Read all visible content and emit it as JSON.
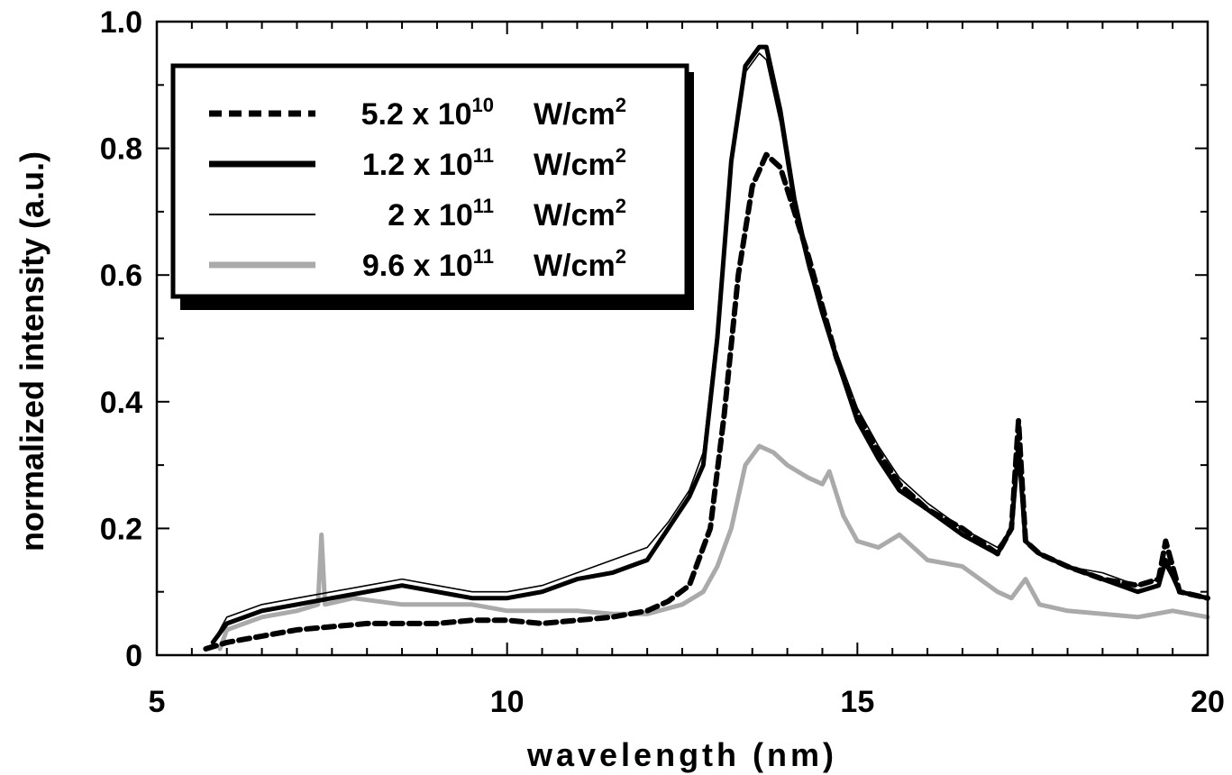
{
  "chart_data": {
    "type": "line",
    "xlabel": "wavelength (nm)",
    "ylabel": "normalized intensity (a.u.)",
    "xlim": [
      5,
      20
    ],
    "ylim": [
      0,
      1.0
    ],
    "x_ticks": [
      5,
      10,
      15,
      20
    ],
    "x_tick_labels": [
      "5",
      "10",
      "15",
      "20"
    ],
    "y_ticks": [
      0,
      0.2,
      0.4,
      0.6,
      0.8,
      1.0
    ],
    "y_tick_labels": [
      "0",
      "0.2",
      "0.4",
      "0.6",
      "0.8",
      "1.0"
    ],
    "grid": false,
    "legend_position": "top-left",
    "series": [
      {
        "name": "5.2 x 10^10 W/cm^2",
        "legend": {
          "mantissa": "5.2 x 10",
          "exponent": "10",
          "unit": "W/cm",
          "unit_exp": "2"
        },
        "style": "dashed",
        "color": "#000000",
        "x": [
          5.7,
          6.0,
          6.5,
          7.0,
          7.5,
          8.0,
          8.5,
          9.0,
          9.5,
          10.0,
          10.5,
          11.0,
          11.5,
          12.0,
          12.3,
          12.6,
          12.9,
          13.1,
          13.3,
          13.5,
          13.7,
          13.9,
          14.1,
          14.3,
          14.5,
          14.7,
          15.0,
          15.3,
          15.6,
          16.0,
          16.5,
          17.0,
          17.2,
          17.3,
          17.4,
          17.6,
          18.0,
          18.5,
          19.0,
          19.3,
          19.4,
          19.6,
          20.0
        ],
        "y": [
          0.01,
          0.02,
          0.03,
          0.04,
          0.045,
          0.05,
          0.05,
          0.05,
          0.055,
          0.055,
          0.05,
          0.055,
          0.06,
          0.07,
          0.085,
          0.11,
          0.2,
          0.38,
          0.6,
          0.74,
          0.79,
          0.77,
          0.7,
          0.63,
          0.55,
          0.47,
          0.38,
          0.32,
          0.27,
          0.23,
          0.2,
          0.16,
          0.2,
          0.37,
          0.18,
          0.16,
          0.14,
          0.12,
          0.11,
          0.12,
          0.18,
          0.1,
          0.09
        ]
      },
      {
        "name": "1.2 x 10^11 W/cm^2",
        "legend": {
          "mantissa": "1.2 x 10",
          "exponent": "11",
          "unit": "W/cm",
          "unit_exp": "2"
        },
        "style": "thick",
        "color": "#000000",
        "x": [
          5.8,
          6.0,
          6.5,
          7.0,
          7.5,
          8.0,
          8.5,
          9.0,
          9.5,
          10.0,
          10.5,
          11.0,
          11.5,
          12.0,
          12.3,
          12.6,
          12.8,
          13.0,
          13.2,
          13.4,
          13.6,
          13.7,
          13.9,
          14.1,
          14.3,
          14.5,
          14.7,
          15.0,
          15.3,
          15.6,
          16.0,
          16.5,
          17.0,
          17.2,
          17.3,
          17.4,
          17.6,
          18.0,
          18.5,
          19.0,
          19.3,
          19.4,
          19.6,
          20.0
        ],
        "y": [
          0.02,
          0.05,
          0.07,
          0.08,
          0.09,
          0.1,
          0.11,
          0.1,
          0.09,
          0.09,
          0.1,
          0.12,
          0.13,
          0.15,
          0.2,
          0.25,
          0.3,
          0.5,
          0.78,
          0.93,
          0.96,
          0.96,
          0.86,
          0.72,
          0.62,
          0.54,
          0.47,
          0.37,
          0.31,
          0.26,
          0.23,
          0.19,
          0.16,
          0.2,
          0.33,
          0.18,
          0.16,
          0.14,
          0.12,
          0.1,
          0.11,
          0.15,
          0.1,
          0.09
        ]
      },
      {
        "name": "2 x 10^11 W/cm^2",
        "legend": {
          "mantissa": "2 x 10",
          "exponent": "11",
          "unit": "W/cm",
          "unit_exp": "2"
        },
        "style": "thin",
        "color": "#000000",
        "x": [
          5.8,
          6.0,
          6.5,
          7.0,
          7.5,
          8.0,
          8.5,
          9.0,
          9.5,
          10.0,
          10.5,
          11.0,
          11.5,
          12.0,
          12.3,
          12.6,
          12.8,
          13.0,
          13.2,
          13.4,
          13.6,
          13.7,
          13.9,
          14.1,
          14.3,
          14.5,
          14.7,
          15.0,
          15.3,
          15.6,
          16.0,
          16.5,
          17.0,
          17.2,
          17.3,
          17.4,
          17.6,
          18.0,
          18.5,
          19.0,
          19.3,
          19.4,
          19.6,
          20.0
        ],
        "y": [
          0.02,
          0.06,
          0.08,
          0.09,
          0.1,
          0.11,
          0.12,
          0.11,
          0.1,
          0.1,
          0.11,
          0.13,
          0.15,
          0.17,
          0.21,
          0.26,
          0.32,
          0.52,
          0.78,
          0.92,
          0.95,
          0.94,
          0.84,
          0.7,
          0.61,
          0.54,
          0.48,
          0.39,
          0.33,
          0.28,
          0.24,
          0.2,
          0.17,
          0.2,
          0.3,
          0.18,
          0.16,
          0.14,
          0.13,
          0.11,
          0.12,
          0.14,
          0.1,
          0.09
        ]
      },
      {
        "name": "9.6 x 10^11 W/cm^2",
        "legend": {
          "mantissa": "9.6 x 10",
          "exponent": "11",
          "unit": "W/cm",
          "unit_exp": "2"
        },
        "style": "gray",
        "color": "#aaaaaa",
        "x": [
          5.9,
          6.0,
          6.5,
          7.0,
          7.3,
          7.35,
          7.4,
          7.8,
          8.5,
          9.0,
          9.5,
          10.0,
          10.5,
          11.0,
          11.5,
          12.0,
          12.5,
          12.8,
          13.0,
          13.2,
          13.4,
          13.6,
          13.8,
          14.0,
          14.3,
          14.5,
          14.6,
          14.8,
          15.0,
          15.3,
          15.6,
          16.0,
          16.5,
          17.0,
          17.2,
          17.4,
          17.6,
          18.0,
          18.5,
          19.0,
          19.5,
          20.0
        ],
        "y": [
          0.01,
          0.04,
          0.06,
          0.07,
          0.08,
          0.19,
          0.08,
          0.09,
          0.08,
          0.08,
          0.08,
          0.07,
          0.07,
          0.07,
          0.065,
          0.065,
          0.08,
          0.1,
          0.14,
          0.2,
          0.3,
          0.33,
          0.32,
          0.3,
          0.28,
          0.27,
          0.29,
          0.22,
          0.18,
          0.17,
          0.19,
          0.15,
          0.14,
          0.1,
          0.09,
          0.12,
          0.08,
          0.07,
          0.065,
          0.06,
          0.07,
          0.06
        ]
      }
    ]
  }
}
